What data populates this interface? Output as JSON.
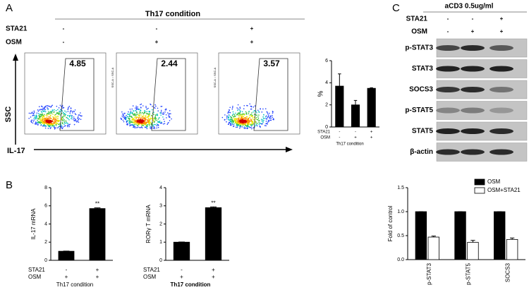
{
  "panel_labels": [
    "A",
    "B",
    "C"
  ],
  "panel_a": {
    "title": "Th17 condition",
    "rows": [
      {
        "name": "STA21",
        "marks": [
          "-",
          "-",
          "+"
        ]
      },
      {
        "name": "OSM",
        "marks": [
          "-",
          "+",
          "+"
        ]
      }
    ],
    "gates": [
      "4.85",
      "2.44",
      "3.57"
    ],
    "y_axis": "SSC",
    "x_axis": "IL-17",
    "plot_axis_label": "SSC-A :: SSC-A"
  },
  "panel_c": {
    "title": "aCD3 0.5ug/ml",
    "rows": [
      {
        "name": "STA21",
        "marks": [
          "-",
          "-",
          "+"
        ]
      },
      {
        "name": "OSM",
        "marks": [
          "-",
          "+",
          "+"
        ]
      }
    ],
    "blots": [
      "p-STAT3",
      "STAT3",
      "SOCS3",
      "p-STAT5",
      "STAT5",
      "β-actin"
    ]
  },
  "chart_data": [
    {
      "type": "bar",
      "ylabel": "%",
      "ylim": [
        0,
        6
      ],
      "yticks": [
        0,
        2,
        4,
        6
      ],
      "series": [
        {
          "color": "#000000",
          "values": [
            3.7,
            2.0,
            3.5
          ],
          "errors": [
            1.1,
            0.4,
            0.05
          ]
        }
      ],
      "conditions": [
        {
          "name": "STA21",
          "marks": [
            "-",
            "-",
            "+"
          ]
        },
        {
          "name": "OSM",
          "marks": [
            "-",
            "+",
            "+"
          ]
        }
      ],
      "xlabel": "Th17 condition"
    },
    {
      "type": "bar",
      "ylabel": "IL-17 mRNA",
      "ylim": [
        0,
        8
      ],
      "yticks": [
        0,
        2,
        4,
        6,
        8
      ],
      "series": [
        {
          "color": "#000000",
          "values": [
            1.0,
            5.7
          ],
          "errors": [
            0.02,
            0.08
          ]
        }
      ],
      "significance": [
        null,
        "**"
      ],
      "conditions": [
        {
          "name": "STA21",
          "marks": [
            "-",
            "+"
          ]
        },
        {
          "name": "OSM",
          "marks": [
            "+",
            "+"
          ]
        }
      ],
      "xlabel": "Th17 condition"
    },
    {
      "type": "bar",
      "ylabel": "RORγ T mRNA",
      "ylim": [
        0,
        4
      ],
      "yticks": [
        0,
        1,
        2,
        3,
        4
      ],
      "series": [
        {
          "color": "#000000",
          "values": [
            1.0,
            2.9
          ],
          "errors": [
            0.01,
            0.04
          ]
        }
      ],
      "significance": [
        null,
        "**"
      ],
      "conditions": [
        {
          "name": "STA21",
          "marks": [
            "-",
            "+"
          ]
        },
        {
          "name": "OSM",
          "marks": [
            "+",
            "+"
          ]
        }
      ],
      "xlabel": "Th17 condition"
    },
    {
      "type": "bar",
      "ylabel": "Fold of control",
      "ylim": [
        0,
        1.5
      ],
      "yticks": [
        {
          "value": 0,
          "label": "0.0"
        },
        0.5,
        {
          "value": 1,
          "label": "1.0"
        },
        1.5
      ],
      "categories": [
        "p-STAT3",
        "p-STAT5",
        "SOCS3"
      ],
      "legend": "top-right",
      "series": [
        {
          "name": "OSM",
          "color": "#000000",
          "values": [
            1,
            1,
            1
          ],
          "errors": [
            0,
            0,
            0
          ]
        },
        {
          "name": "OSM+STA21",
          "color": "#ffffff",
          "values": [
            0.47,
            0.36,
            0.42
          ],
          "errors": [
            0.02,
            0.04,
            0.03
          ]
        }
      ]
    }
  ]
}
